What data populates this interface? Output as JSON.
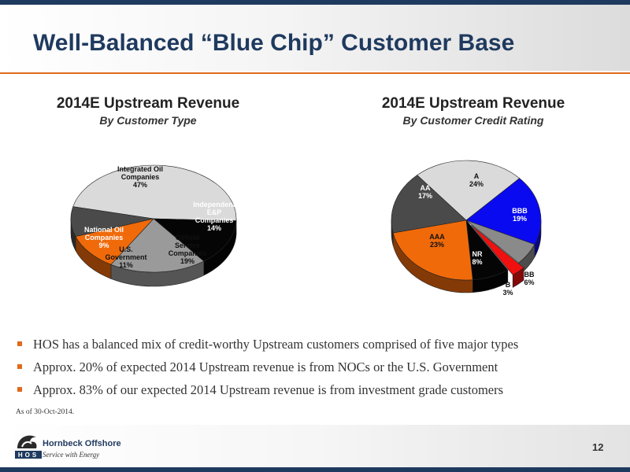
{
  "slide": {
    "title": "Well-Balanced “Blue Chip” Customer Base",
    "page_number": "12",
    "bullets": [
      "HOS has a balanced mix of credit-worthy Upstream customers comprised of five major types",
      "Approx. 20% of expected 2014 Upstream revenue is from NOCs or the U.S. Government",
      "Approx. 83% of our expected 2014 Upstream revenue is from investment grade customers"
    ],
    "note": "As of 30-Oct-2014.",
    "footer": {
      "brand_name": "Hornbeck Offshore",
      "tagline": "Service with Energy",
      "logo_text": "HOS"
    }
  },
  "colors": {
    "title": "#1f3a5f",
    "accent_orange": "#e06a1c"
  },
  "chart_data": [
    {
      "type": "pie",
      "title": "2014E Upstream Revenue",
      "subtitle": "By Customer Type",
      "slices": [
        {
          "label_lines": [
            "Integrated Oil",
            "Companies"
          ],
          "value": 47,
          "value_label": "47%",
          "color": "#dadada"
        },
        {
          "label_lines": [
            "Independent",
            "E&P",
            "Companies"
          ],
          "value": 14,
          "value_label": "14%",
          "color": "#050505"
        },
        {
          "label_lines": [
            "Oilfield",
            "Service",
            "Companies"
          ],
          "value": 19,
          "value_label": "19%",
          "color": "#9a9a9a"
        },
        {
          "label_lines": [
            "U.S.",
            "Government"
          ],
          "value": 11,
          "value_label": "11%",
          "color": "#f06a0a"
        },
        {
          "label_lines": [
            "National Oil",
            "Companies"
          ],
          "value": 9,
          "value_label": "9%",
          "color": "#4a4a4a"
        }
      ]
    },
    {
      "type": "pie",
      "title": "2014E Upstream Revenue",
      "subtitle": "By Customer Credit Rating",
      "slices": [
        {
          "label_lines": [
            "A"
          ],
          "value": 24,
          "value_label": "24%",
          "color": "#dadada"
        },
        {
          "label_lines": [
            "BBB"
          ],
          "value": 19,
          "value_label": "19%",
          "color": "#0a0af0"
        },
        {
          "label_lines": [
            "BB"
          ],
          "value": 6,
          "value_label": "6%",
          "color": "#8a8a8a"
        },
        {
          "label_lines": [
            "B"
          ],
          "value": 3,
          "value_label": "3%",
          "color": "#f01010"
        },
        {
          "label_lines": [
            "NR"
          ],
          "value": 8,
          "value_label": "8%",
          "color": "#050505"
        },
        {
          "label_lines": [
            "AAA"
          ],
          "value": 23,
          "value_label": "23%",
          "color": "#f06a0a"
        },
        {
          "label_lines": [
            "AA"
          ],
          "value": 17,
          "value_label": "17%",
          "color": "#4a4a4a"
        }
      ]
    }
  ]
}
